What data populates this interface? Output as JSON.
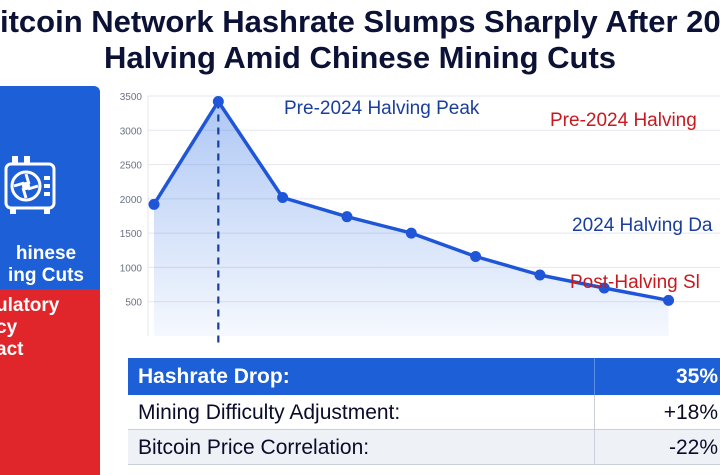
{
  "headline": {
    "line1": "itcoin Network Hashrate Slumps Sharply After 202",
    "line2": "Halving Amid Chinese Mining Cuts"
  },
  "side_panel": {
    "top_label_1": "hinese",
    "top_label_2": "ing Cuts",
    "bottom_label_1": "ulatory",
    "bottom_label_2": "cy",
    "bottom_label_3": "act",
    "icon": "mining-rig-icon"
  },
  "colors": {
    "brand_blue": "#1c5fd6",
    "alert_red": "#e0262a",
    "line_blue": "#1f56d8",
    "annotation_blue": "#1a3e9c",
    "annotation_red": "#c8191f"
  },
  "chart_data": {
    "type": "area",
    "x": [
      1,
      2,
      3,
      4,
      5,
      6,
      7,
      8,
      9
    ],
    "series": [
      {
        "values": [
          1920,
          3420,
          2020,
          1740,
          1500,
          1160,
          890,
          700,
          520
        ]
      }
    ],
    "ylim": [
      0,
      3500
    ],
    "yticks": [
      500,
      1000,
      1500,
      2000,
      2500,
      3000,
      3500
    ],
    "grid": true,
    "marker_x": 2,
    "annotations": [
      {
        "text": "Pre-2024 Halving Peak",
        "color": "blue"
      },
      {
        "text": "Pre-2024 Halving",
        "color": "red"
      },
      {
        "text": "2024 Halving Da",
        "color": "blue"
      },
      {
        "text": "Post-Halving Sl",
        "color": "red"
      }
    ]
  },
  "stats": {
    "rows": [
      {
        "label": "Hashrate Drop:",
        "value": "35%"
      },
      {
        "label": "Mining Difficulty Adjustment:",
        "value": "+18%"
      },
      {
        "label": "Bitcoin Price Correlation:",
        "value": "-22%"
      }
    ]
  }
}
